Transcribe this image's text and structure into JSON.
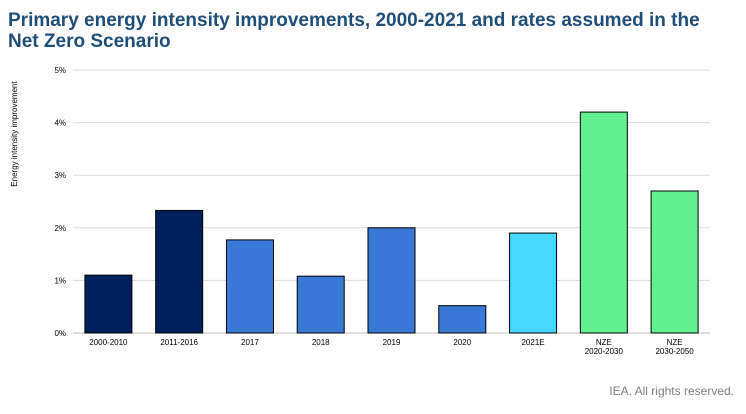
{
  "chart_data": {
    "type": "bar",
    "title": "Primary energy intensity improvements, 2000-2021 and rates assumed in the Net Zero Scenario",
    "ylabel": "Energy intensity improvement",
    "xlabel": "",
    "ylim": [
      0,
      5
    ],
    "yticks": [
      0,
      1,
      2,
      3,
      4,
      5
    ],
    "ytick_labels": [
      "0%",
      "1%",
      "2%",
      "3%",
      "4%",
      "5%"
    ],
    "grid": true,
    "categories": [
      [
        "2000-2010"
      ],
      [
        "2011-2016"
      ],
      [
        "2017"
      ],
      [
        "2018"
      ],
      [
        "2019"
      ],
      [
        "2020"
      ],
      [
        "2021E"
      ],
      [
        "NZE",
        "2020-2030"
      ],
      [
        "NZE",
        "2030-2050"
      ]
    ],
    "values": [
      1.1,
      2.33,
      1.77,
      1.08,
      2.0,
      0.52,
      1.9,
      4.2,
      2.7
    ],
    "colors": [
      "#00205b",
      "#00205b",
      "#3a78d6",
      "#3a78d6",
      "#3a78d6",
      "#3a78d6",
      "#46d7ff",
      "#63f08e",
      "#63f08e"
    ]
  },
  "footer": "IEA. All rights reserved."
}
